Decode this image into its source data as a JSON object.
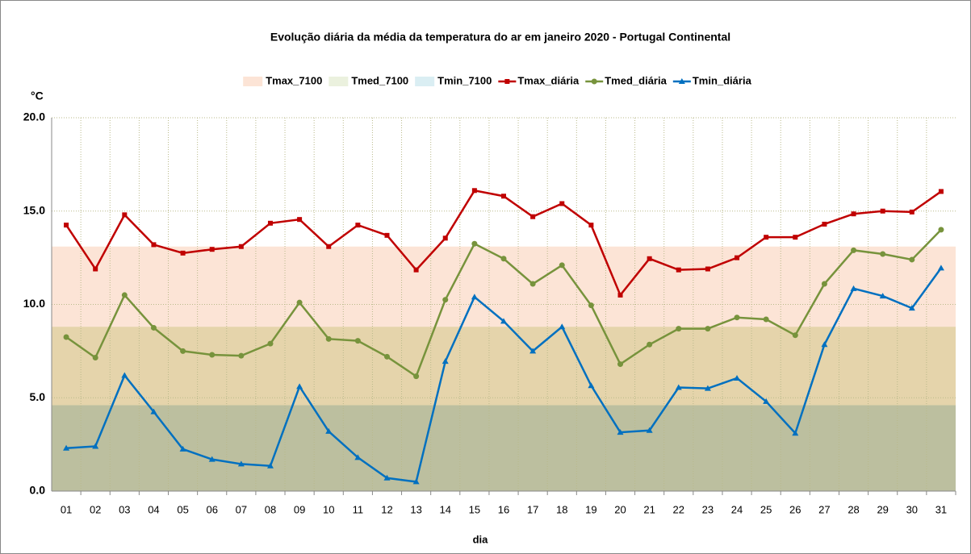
{
  "chart_data": {
    "type": "line",
    "title": "Evolução diária da média da temperatura do ar em janeiro 2020 - Portugal Continental",
    "y_label": "°C",
    "x_label": "dia",
    "categories": [
      "01",
      "02",
      "03",
      "04",
      "05",
      "06",
      "07",
      "08",
      "09",
      "10",
      "11",
      "12",
      "13",
      "14",
      "15",
      "16",
      "17",
      "18",
      "19",
      "20",
      "21",
      "22",
      "23",
      "24",
      "25",
      "26",
      "27",
      "28",
      "29",
      "30",
      "31"
    ],
    "ylim": [
      0,
      20
    ],
    "yticks": [
      {
        "value": 0,
        "label": "0.0"
      },
      {
        "value": 5,
        "label": "5.0"
      },
      {
        "value": 10,
        "label": "10.0"
      },
      {
        "value": 15,
        "label": "15.0"
      },
      {
        "value": 20,
        "label": "20.0"
      }
    ],
    "grid": true,
    "legend": "top",
    "series": [
      {
        "name": "Tmax_7100",
        "kind": "area",
        "color": "#fce4d6",
        "values": [
          13.1,
          13.1,
          13.1,
          13.1,
          13.1,
          13.1,
          13.1,
          13.1,
          13.1,
          13.1,
          13.1,
          13.1,
          13.1,
          13.1,
          13.1,
          13.1,
          13.1,
          13.1,
          13.1,
          13.1,
          13.1,
          13.1,
          13.1,
          13.1,
          13.1,
          13.1,
          13.1,
          13.1,
          13.1,
          13.1,
          13.1
        ]
      },
      {
        "name": "Tmed_7100",
        "kind": "area",
        "color": "#ebf1de",
        "values": [
          8.8,
          8.8,
          8.8,
          8.8,
          8.8,
          8.8,
          8.8,
          8.8,
          8.8,
          8.8,
          8.8,
          8.8,
          8.8,
          8.8,
          8.8,
          8.8,
          8.8,
          8.8,
          8.8,
          8.8,
          8.8,
          8.8,
          8.8,
          8.8,
          8.8,
          8.8,
          8.8,
          8.8,
          8.8,
          8.8,
          8.8
        ]
      },
      {
        "name": "Tmin_7100",
        "kind": "area",
        "color": "#daeef3",
        "values": [
          4.6,
          4.6,
          4.6,
          4.6,
          4.6,
          4.6,
          4.6,
          4.6,
          4.6,
          4.6,
          4.6,
          4.6,
          4.6,
          4.6,
          4.6,
          4.6,
          4.6,
          4.6,
          4.6,
          4.6,
          4.6,
          4.6,
          4.6,
          4.6,
          4.6,
          4.6,
          4.6,
          4.6,
          4.6,
          4.6,
          4.6
        ]
      },
      {
        "name": "Tmax_diária",
        "kind": "line",
        "marker": "square",
        "color": "#c00000",
        "values": [
          14.25,
          11.9,
          14.8,
          13.2,
          12.75,
          12.95,
          13.1,
          14.35,
          14.55,
          13.1,
          14.25,
          13.7,
          11.85,
          13.55,
          16.1,
          15.8,
          14.7,
          15.4,
          14.25,
          10.5,
          12.45,
          11.85,
          11.9,
          12.5,
          13.6,
          13.6,
          14.3,
          14.85,
          15.0,
          14.95,
          16.05
        ]
      },
      {
        "name": "Tmed_diária",
        "kind": "line",
        "marker": "circle",
        "color": "#77933c",
        "values": [
          8.25,
          7.15,
          10.5,
          8.75,
          7.5,
          7.3,
          7.25,
          7.9,
          10.1,
          8.15,
          8.05,
          7.2,
          6.15,
          10.25,
          13.25,
          12.45,
          11.1,
          12.1,
          9.95,
          6.8,
          7.85,
          8.7,
          8.7,
          9.3,
          9.2,
          8.35,
          11.1,
          12.9,
          12.7,
          12.4,
          14.0
        ]
      },
      {
        "name": "Tmin_diária",
        "kind": "line",
        "marker": "triangle",
        "color": "#0070c0",
        "values": [
          2.3,
          2.4,
          6.2,
          4.25,
          2.25,
          1.7,
          1.45,
          1.35,
          5.6,
          3.2,
          1.8,
          0.7,
          0.5,
          6.95,
          10.4,
          9.1,
          7.5,
          8.8,
          5.65,
          3.15,
          3.25,
          5.55,
          5.5,
          6.05,
          4.8,
          3.1,
          7.85,
          10.85,
          10.45,
          9.8,
          11.95
        ]
      }
    ]
  }
}
